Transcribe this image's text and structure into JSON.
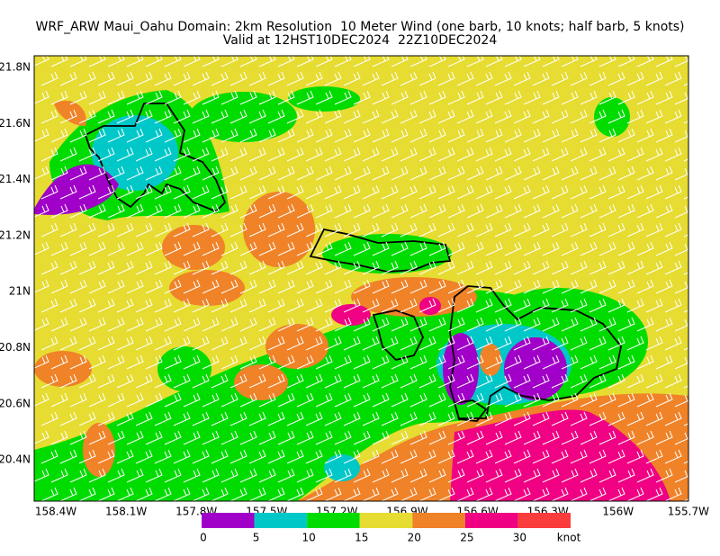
{
  "header": {
    "line1": "WRF_ARW Maui_Oahu Domain: 2km Resolution  10 Meter Wind (one barb, 10 knots; half barb, 5 knots)",
    "line2": "Valid at 12HST10DEC2024  22Z10DEC2024"
  },
  "axes": {
    "x_labels": [
      "158.4W",
      "158.1W",
      "157.8W",
      "157.5W",
      "157.2W",
      "156.9W",
      "156.6W",
      "156.3W",
      "156W",
      "155.7W"
    ],
    "y_labels": [
      "21.8N",
      "21.6N",
      "21.4N",
      "21.2N",
      "21N",
      "20.8N",
      "20.6N",
      "20.4N"
    ]
  },
  "colorbar": {
    "colors": [
      "#a000c8",
      "#00c8c8",
      "#00dc00",
      "#e6dc32",
      "#f08228",
      "#f00082",
      "#fa3c3c"
    ],
    "labels": [
      "0",
      "5",
      "10",
      "15",
      "20",
      "25",
      "30"
    ],
    "unit": "knot"
  }
}
